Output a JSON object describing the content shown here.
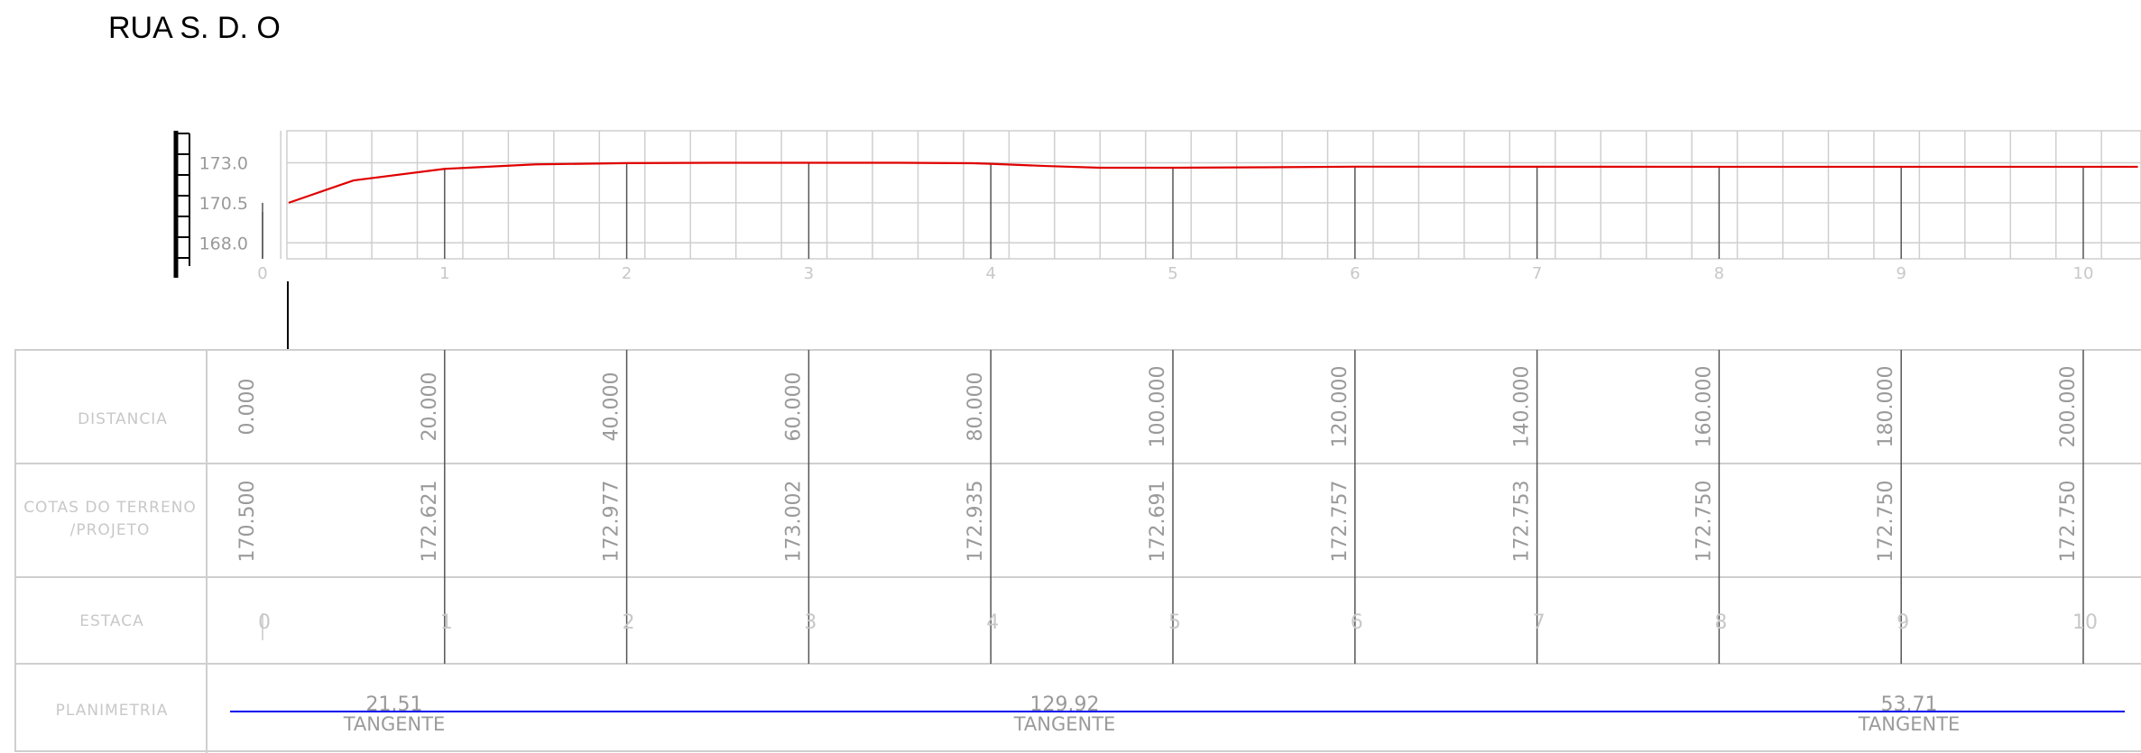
{
  "title": "RUA S. D. O",
  "colors": {
    "profile_line": "#e00000",
    "planimetry_line": "#0000ee",
    "grid": "#cfcfcf",
    "station_line": "#555555",
    "label_text": "#c8c8c8",
    "value_text": "#9a9a9a",
    "scale_bar": "#000000"
  },
  "chart_data": {
    "type": "line",
    "title": "",
    "xlabel": "",
    "ylabel": "",
    "ylim": [
      167.0,
      175.0
    ],
    "y_ticks": [
      "173.0",
      "170.5",
      "168.0"
    ],
    "y_tick_values": [
      173.0,
      170.5,
      168.0
    ],
    "x_ticks": [
      "0",
      "1",
      "2",
      "3",
      "4",
      "5",
      "6",
      "7",
      "8",
      "9",
      "10"
    ],
    "grid": true,
    "series": [
      {
        "x": [
          0,
          0.5,
          1,
          1.5,
          2,
          2.5,
          3,
          3.5,
          3.9,
          4,
          4.3,
          4.6,
          5,
          5.5,
          6,
          7,
          8,
          9,
          10,
          10.3
        ],
        "values": [
          170.5,
          171.9,
          172.621,
          172.9,
          172.977,
          173.0,
          173.002,
          173.0,
          172.97,
          172.935,
          172.8,
          172.69,
          172.691,
          172.72,
          172.757,
          172.753,
          172.75,
          172.75,
          172.75,
          172.75
        ]
      }
    ]
  },
  "table": {
    "row_labels": {
      "distancia": "DISTANCIA",
      "cotas_line1": "COTAS DO TERRENO",
      "cotas_line2": "/PROJETO",
      "estaca": "ESTACA",
      "planimetria": "PLANIMETRIA"
    },
    "distancias": [
      "0.000",
      "20.000",
      "40.000",
      "60.000",
      "80.000",
      "100.000",
      "120.000",
      "140.000",
      "160.000",
      "180.000",
      "200.000"
    ],
    "cotas": [
      "170.500",
      "172.621",
      "172.977",
      "173.002",
      "172.935",
      "172.691",
      "172.757",
      "172.753",
      "172.750",
      "172.750",
      "172.750"
    ],
    "estacas": [
      "0",
      "1",
      "2",
      "3",
      "4",
      "5",
      "6",
      "7",
      "8",
      "9",
      "10"
    ],
    "planimetria": [
      {
        "length": "21.51",
        "type": "TANGENTE"
      },
      {
        "length": "129.92",
        "type": "TANGENTE"
      },
      {
        "length": "53.71",
        "type": "TANGENTE"
      }
    ]
  }
}
